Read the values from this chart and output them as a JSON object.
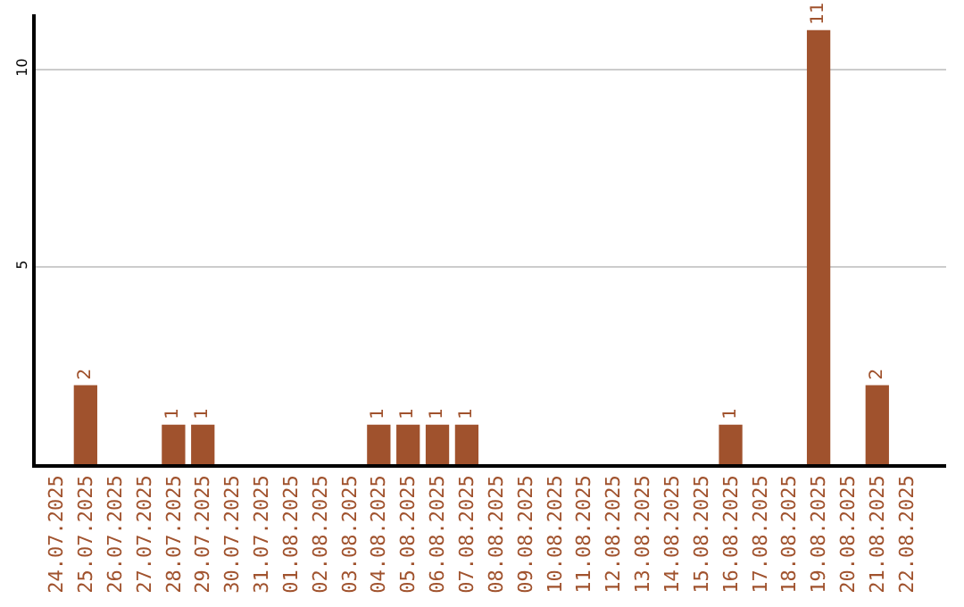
{
  "chart_data": {
    "type": "bar",
    "categories": [
      "24.07.2025",
      "25.07.2025",
      "26.07.2025",
      "27.07.2025",
      "28.07.2025",
      "29.07.2025",
      "30.07.2025",
      "31.07.2025",
      "01.08.2025",
      "02.08.2025",
      "03.08.2025",
      "04.08.2025",
      "05.08.2025",
      "06.08.2025",
      "07.08.2025",
      "08.08.2025",
      "09.08.2025",
      "10.08.2025",
      "11.08.2025",
      "12.08.2025",
      "13.08.2025",
      "14.08.2025",
      "15.08.2025",
      "16.08.2025",
      "17.08.2025",
      "18.08.2025",
      "19.08.2025",
      "20.08.2025",
      "21.08.2025",
      "22.08.2025"
    ],
    "values": [
      0,
      2,
      0,
      0,
      1,
      1,
      0,
      0,
      0,
      0,
      0,
      1,
      1,
      1,
      1,
      0,
      0,
      0,
      0,
      0,
      0,
      0,
      0,
      1,
      0,
      0,
      11,
      0,
      2,
      0
    ],
    "value_labels": [
      null,
      "2",
      null,
      null,
      "1",
      "1",
      null,
      null,
      null,
      null,
      null,
      "1",
      "1",
      "1",
      "1",
      null,
      null,
      null,
      null,
      null,
      null,
      null,
      null,
      "1",
      null,
      null,
      "11",
      null,
      "2",
      null
    ],
    "color": "#a0522d",
    "ylim": [
      0,
      11.4
    ],
    "yticks": [
      5,
      10
    ],
    "grid": "y",
    "legend": false
  }
}
